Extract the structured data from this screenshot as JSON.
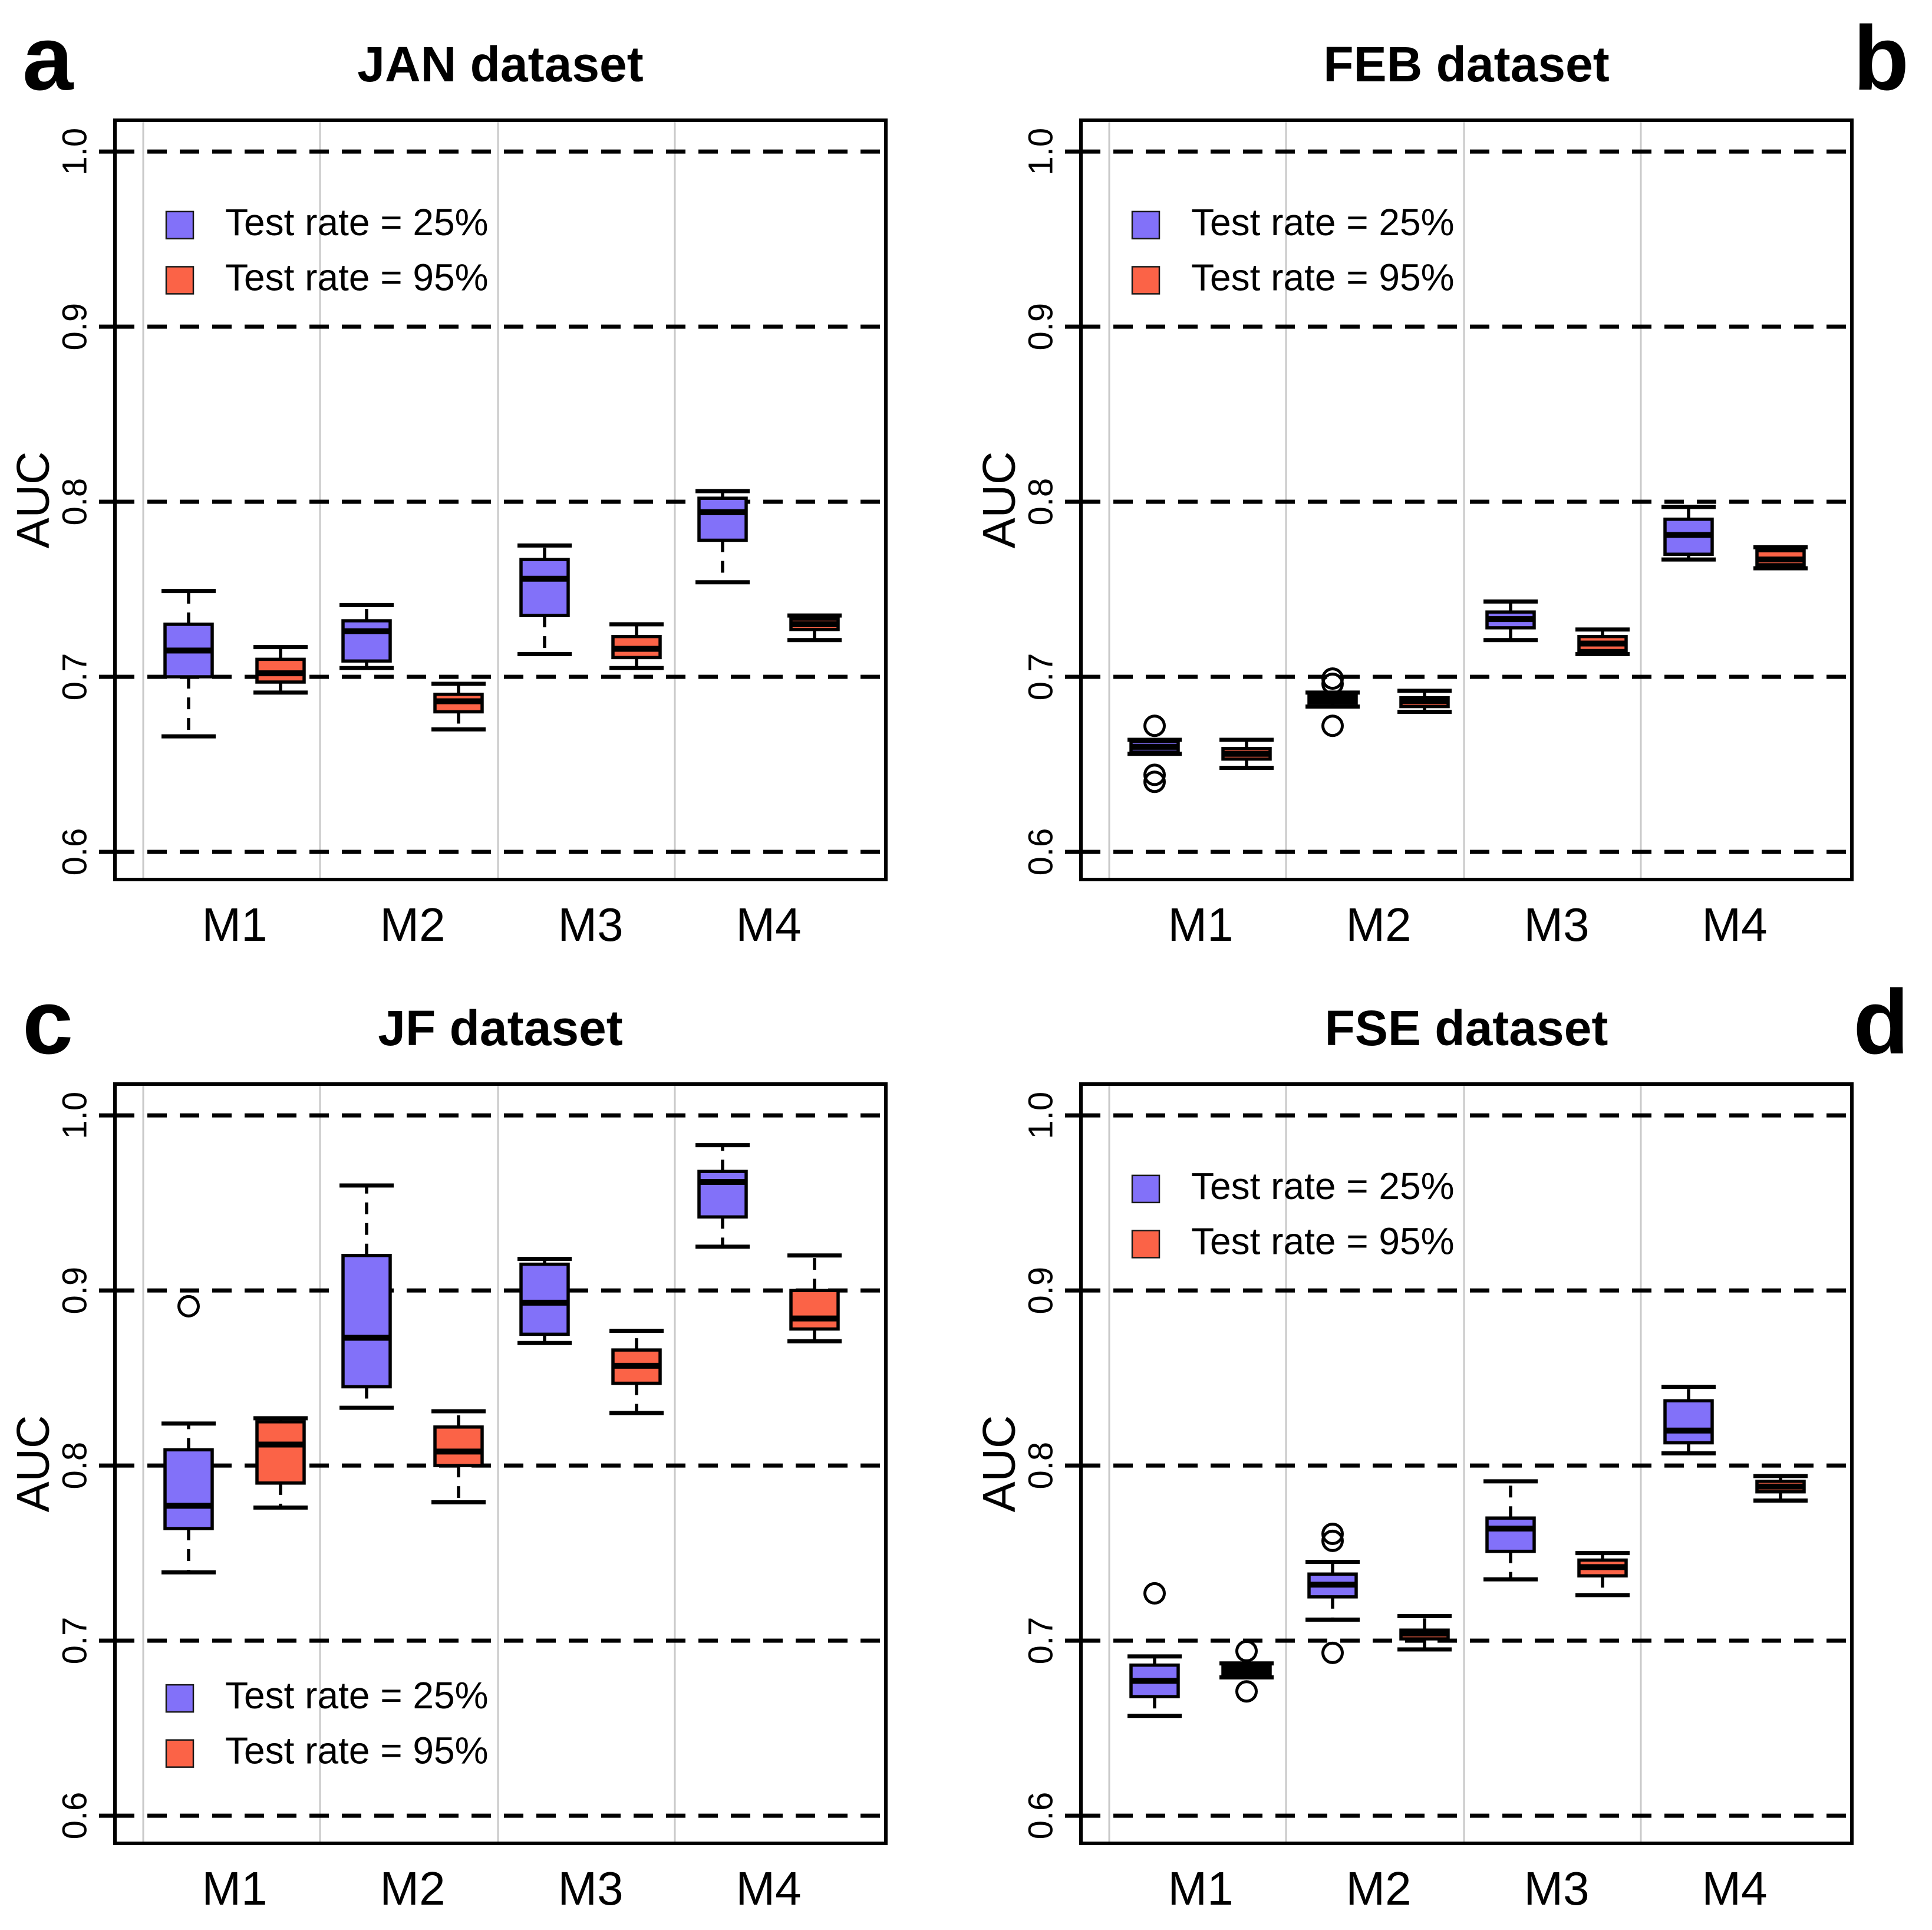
{
  "page": {
    "background": "#ffffff"
  },
  "colors": {
    "series_blue": "#8271F9",
    "series_red": "#FB6347",
    "grid_gray": "#C9C9C9",
    "frame_black": "#000000"
  },
  "legend_labels": [
    "Test rate = 25%",
    "Test rate = 95%"
  ],
  "chart_data": [
    {
      "id": "a",
      "type": "boxplot",
      "letter": "a",
      "letter_side": "left",
      "title": "JAN dataset",
      "ylabel": "AUC",
      "xlabel": "",
      "ytick_labels": [
        "0.6",
        "0.7",
        "0.8",
        "0.9",
        "1.0"
      ],
      "yticks": [
        0.6,
        0.7,
        0.8,
        0.9,
        1.0
      ],
      "ylim": [
        0.5842,
        1.0179
      ],
      "categories": [
        "M1",
        "M2",
        "M3",
        "M4"
      ],
      "grid": {
        "horizontal": "dashed-black",
        "vertical": "solid-light-gray"
      },
      "legend": {
        "position": "top-left",
        "items": [
          {
            "label": "Test rate = 25%",
            "color": "#8271F9"
          },
          {
            "label": "Test rate = 95%",
            "color": "#FB6347"
          }
        ]
      },
      "series": [
        {
          "name": "Test rate = 25%",
          "color": "#8271F9",
          "boxes": [
            {
              "category": "M1",
              "whislo": 0.666,
              "q1": 0.7,
              "med": 0.715,
              "q3": 0.73,
              "whishi": 0.749,
              "outliers": []
            },
            {
              "category": "M2",
              "whislo": 0.705,
              "q1": 0.709,
              "med": 0.726,
              "q3": 0.732,
              "whishi": 0.741,
              "outliers": []
            },
            {
              "category": "M3",
              "whislo": 0.713,
              "q1": 0.735,
              "med": 0.756,
              "q3": 0.767,
              "whishi": 0.775,
              "outliers": []
            },
            {
              "category": "M4",
              "whislo": 0.754,
              "q1": 0.778,
              "med": 0.794,
              "q3": 0.802,
              "whishi": 0.806,
              "outliers": []
            }
          ]
        },
        {
          "name": "Test rate = 95%",
          "color": "#FB6347",
          "boxes": [
            {
              "category": "M1",
              "whislo": 0.691,
              "q1": 0.697,
              "med": 0.702,
              "q3": 0.71,
              "whishi": 0.717,
              "outliers": []
            },
            {
              "category": "M2",
              "whislo": 0.67,
              "q1": 0.68,
              "med": 0.686,
              "q3": 0.69,
              "whishi": 0.696,
              "outliers": []
            },
            {
              "category": "M3",
              "whislo": 0.705,
              "q1": 0.711,
              "med": 0.716,
              "q3": 0.723,
              "whishi": 0.73,
              "outliers": []
            },
            {
              "category": "M4",
              "whislo": 0.721,
              "q1": 0.727,
              "med": 0.73,
              "q3": 0.733,
              "whishi": 0.735,
              "outliers": []
            }
          ]
        }
      ]
    },
    {
      "id": "b",
      "type": "boxplot",
      "letter": "b",
      "letter_side": "right",
      "title": "FEB dataset",
      "ylabel": "AUC",
      "xlabel": "",
      "ytick_labels": [
        "0.6",
        "0.7",
        "0.8",
        "0.9",
        "1.0"
      ],
      "yticks": [
        0.6,
        0.7,
        0.8,
        0.9,
        1.0
      ],
      "ylim": [
        0.5842,
        1.0179
      ],
      "categories": [
        "M1",
        "M2",
        "M3",
        "M4"
      ],
      "grid": {
        "horizontal": "dashed-black",
        "vertical": "solid-light-gray"
      },
      "legend": {
        "position": "top-left",
        "items": [
          {
            "label": "Test rate = 25%",
            "color": "#8271F9"
          },
          {
            "label": "Test rate = 95%",
            "color": "#FB6347"
          }
        ]
      },
      "series": [
        {
          "name": "Test rate = 25%",
          "color": "#8271F9",
          "boxes": [
            {
              "category": "M1",
              "whislo": 0.656,
              "q1": 0.657,
              "med": 0.66,
              "q3": 0.663,
              "whishi": 0.664,
              "outliers": [
                0.672,
                0.644,
                0.64
              ]
            },
            {
              "category": "M2",
              "whislo": 0.683,
              "q1": 0.685,
              "med": 0.687,
              "q3": 0.689,
              "whishi": 0.691,
              "outliers": [
                0.699,
                0.696,
                0.672
              ]
            },
            {
              "category": "M3",
              "whislo": 0.721,
              "q1": 0.728,
              "med": 0.733,
              "q3": 0.737,
              "whishi": 0.743,
              "outliers": []
            },
            {
              "category": "M4",
              "whislo": 0.767,
              "q1": 0.77,
              "med": 0.781,
              "q3": 0.79,
              "whishi": 0.797,
              "outliers": []
            }
          ]
        },
        {
          "name": "Test rate = 95%",
          "color": "#FB6347",
          "boxes": [
            {
              "category": "M1",
              "whislo": 0.648,
              "q1": 0.653,
              "med": 0.656,
              "q3": 0.659,
              "whishi": 0.664,
              "outliers": []
            },
            {
              "category": "M2",
              "whislo": 0.68,
              "q1": 0.683,
              "med": 0.686,
              "q3": 0.688,
              "whishi": 0.692,
              "outliers": []
            },
            {
              "category": "M3",
              "whislo": 0.713,
              "q1": 0.715,
              "med": 0.719,
              "q3": 0.723,
              "whishi": 0.727,
              "outliers": []
            },
            {
              "category": "M4",
              "whislo": 0.762,
              "q1": 0.764,
              "med": 0.767,
              "q3": 0.772,
              "whishi": 0.774,
              "outliers": []
            }
          ]
        }
      ]
    },
    {
      "id": "c",
      "type": "boxplot",
      "letter": "c",
      "letter_side": "left",
      "title": "JF dataset",
      "ylabel": "AUC",
      "xlabel": "",
      "ytick_labels": [
        "0.6",
        "0.7",
        "0.8",
        "0.9",
        "1.0"
      ],
      "yticks": [
        0.6,
        0.7,
        0.8,
        0.9,
        1.0
      ],
      "ylim": [
        0.5842,
        1.0179
      ],
      "categories": [
        "M1",
        "M2",
        "M3",
        "M4"
      ],
      "grid": {
        "horizontal": "dashed-black",
        "vertical": "solid-light-gray"
      },
      "legend": {
        "position": "bottom-left",
        "items": [
          {
            "label": "Test rate = 25%",
            "color": "#8271F9"
          },
          {
            "label": "Test rate = 95%",
            "color": "#FB6347"
          }
        ]
      },
      "series": [
        {
          "name": "Test rate = 25%",
          "color": "#8271F9",
          "boxes": [
            {
              "category": "M1",
              "whislo": 0.739,
              "q1": 0.764,
              "med": 0.777,
              "q3": 0.809,
              "whishi": 0.824,
              "outliers": [
                0.891
              ]
            },
            {
              "category": "M2",
              "whislo": 0.833,
              "q1": 0.845,
              "med": 0.873,
              "q3": 0.92,
              "whishi": 0.96,
              "outliers": []
            },
            {
              "category": "M3",
              "whislo": 0.87,
              "q1": 0.875,
              "med": 0.893,
              "q3": 0.915,
              "whishi": 0.918,
              "outliers": []
            },
            {
              "category": "M4",
              "whislo": 0.925,
              "q1": 0.942,
              "med": 0.962,
              "q3": 0.968,
              "whishi": 0.983,
              "outliers": []
            }
          ]
        },
        {
          "name": "Test rate = 95%",
          "color": "#FB6347",
          "boxes": [
            {
              "category": "M1",
              "whislo": 0.776,
              "q1": 0.79,
              "med": 0.812,
              "q3": 0.825,
              "whishi": 0.827,
              "outliers": []
            },
            {
              "category": "M2",
              "whislo": 0.779,
              "q1": 0.8,
              "med": 0.808,
              "q3": 0.822,
              "whishi": 0.831,
              "outliers": []
            },
            {
              "category": "M3",
              "whislo": 0.83,
              "q1": 0.847,
              "med": 0.857,
              "q3": 0.866,
              "whishi": 0.877,
              "outliers": []
            },
            {
              "category": "M4",
              "whislo": 0.871,
              "q1": 0.878,
              "med": 0.884,
              "q3": 0.9,
              "whishi": 0.92,
              "outliers": []
            }
          ]
        }
      ]
    },
    {
      "id": "d",
      "type": "boxplot",
      "letter": "d",
      "letter_side": "right",
      "title": "FSE dataset",
      "ylabel": "AUC",
      "xlabel": "",
      "ytick_labels": [
        "0.6",
        "0.7",
        "0.8",
        "0.9",
        "1.0"
      ],
      "yticks": [
        0.6,
        0.7,
        0.8,
        0.9,
        1.0
      ],
      "ylim": [
        0.5842,
        1.0179
      ],
      "categories": [
        "M1",
        "M2",
        "M3",
        "M4"
      ],
      "grid": {
        "horizontal": "dashed-black",
        "vertical": "solid-light-gray"
      },
      "legend": {
        "position": "top-left",
        "items": [
          {
            "label": "Test rate = 25%",
            "color": "#8271F9"
          },
          {
            "label": "Test rate = 95%",
            "color": "#FB6347"
          }
        ]
      },
      "series": [
        {
          "name": "Test rate = 25%",
          "color": "#8271F9",
          "boxes": [
            {
              "category": "M1",
              "whislo": 0.657,
              "q1": 0.668,
              "med": 0.677,
              "q3": 0.686,
              "whishi": 0.691,
              "outliers": [
                0.727
              ]
            },
            {
              "category": "M2",
              "whislo": 0.712,
              "q1": 0.725,
              "med": 0.732,
              "q3": 0.738,
              "whishi": 0.745,
              "outliers": [
                0.761,
                0.757,
                0.693
              ]
            },
            {
              "category": "M3",
              "whislo": 0.735,
              "q1": 0.751,
              "med": 0.764,
              "q3": 0.77,
              "whishi": 0.791,
              "outliers": []
            },
            {
              "category": "M4",
              "whislo": 0.807,
              "q1": 0.813,
              "med": 0.82,
              "q3": 0.837,
              "whishi": 0.845,
              "outliers": []
            }
          ]
        },
        {
          "name": "Test rate = 95%",
          "color": "#FB6347",
          "boxes": [
            {
              "category": "M1",
              "whislo": 0.679,
              "q1": 0.681,
              "med": 0.683,
              "q3": 0.685,
              "whishi": 0.687,
              "outliers": [
                0.694,
                0.671
              ]
            },
            {
              "category": "M2",
              "whislo": 0.695,
              "q1": 0.701,
              "med": 0.704,
              "q3": 0.706,
              "whishi": 0.714,
              "outliers": []
            },
            {
              "category": "M3",
              "whislo": 0.726,
              "q1": 0.737,
              "med": 0.742,
              "q3": 0.746,
              "whishi": 0.75,
              "outliers": []
            },
            {
              "category": "M4",
              "whislo": 0.78,
              "q1": 0.785,
              "med": 0.788,
              "q3": 0.791,
              "whishi": 0.794,
              "outliers": []
            }
          ]
        }
      ]
    }
  ]
}
